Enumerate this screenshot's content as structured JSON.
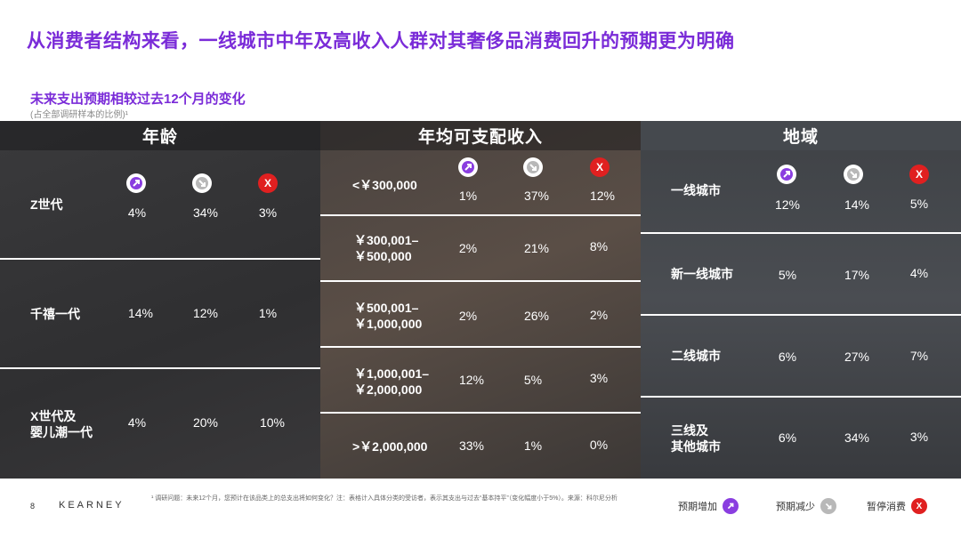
{
  "title": "从消费者结构来看，一线城市中年及高收入人群对其奢侈品消费回升的预期更为明确",
  "subtitle": "未来支出预期相较过去12个月的变化",
  "subnote": "(占全部调研样本的比例)¹",
  "age": {
    "header": "年龄",
    "rows": [
      {
        "label": "Z世代",
        "up": "4%",
        "down": "34%",
        "stop": "3%"
      },
      {
        "label": "千禧一代",
        "up": "14%",
        "down": "12%",
        "stop": "1%"
      },
      {
        "label_line1": "X世代及",
        "label_line2": "婴儿潮一代",
        "up": "4%",
        "down": "20%",
        "stop": "10%"
      }
    ]
  },
  "income": {
    "header": "年均可支配收入",
    "rows": [
      {
        "label_line1": "<￥300,000",
        "label_line2": "",
        "up": "1%",
        "down": "37%",
        "stop": "12%"
      },
      {
        "label_line1": "￥300,001–",
        "label_line2": "￥500,000",
        "up": "2%",
        "down": "21%",
        "stop": "8%"
      },
      {
        "label_line1": "￥500,001–",
        "label_line2": "￥1,000,000",
        "up": "2%",
        "down": "26%",
        "stop": "2%"
      },
      {
        "label_line1": "￥1,000,001–",
        "label_line2": "￥2,000,000",
        "up": "12%",
        "down": "5%",
        "stop": "3%"
      },
      {
        "label_line1": ">￥2,000,000",
        "label_line2": "",
        "up": "33%",
        "down": "1%",
        "stop": "0%"
      }
    ]
  },
  "region": {
    "header": "地域",
    "rows": [
      {
        "label_line1": "一线城市",
        "label_line2": "",
        "up": "12%",
        "down": "14%",
        "stop": "5%"
      },
      {
        "label_line1": "新一线城市",
        "label_line2": "",
        "up": "5%",
        "down": "17%",
        "stop": "4%"
      },
      {
        "label_line1": "二线城市",
        "label_line2": "",
        "up": "6%",
        "down": "27%",
        "stop": "7%"
      },
      {
        "label_line1": "三线及",
        "label_line2": "其他城市",
        "up": "6%",
        "down": "34%",
        "stop": "3%"
      }
    ]
  },
  "icons": {
    "stop_glyph": "X",
    "up_color": "#8a3ee0",
    "down_color": "#b8b8b8",
    "stop_color": "#e02020"
  },
  "footer": {
    "page": "8",
    "brand": "KEARNEY",
    "note": "¹ 调研问题：未来12个月，您预计在该品类上的总支出将如何变化？注：表格计入具体分类的受访者，表示其支出与过去“基本持平”（变化幅度小于5%）。来源：科尔尼分析",
    "legend_up": "预期增加",
    "legend_down": "预期减少",
    "legend_stop": "暂停消费"
  }
}
